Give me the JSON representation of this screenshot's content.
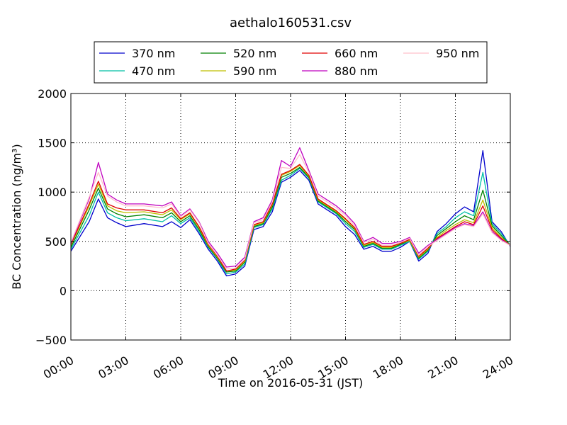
{
  "chart_data": {
    "type": "line",
    "title": "aethalo160531.csv",
    "xlabel": "Time on 2016-05-31 (JST)",
    "ylabel": "BC Concentration (ng/m³)",
    "xlim": [
      0,
      24
    ],
    "ylim": [
      -500,
      2000
    ],
    "xticks": [
      0,
      3,
      6,
      9,
      12,
      15,
      18,
      21,
      24
    ],
    "xtick_labels": [
      "00:00",
      "03:00",
      "06:00",
      "09:00",
      "12:00",
      "15:00",
      "18:00",
      "21:00",
      "24:00"
    ],
    "yticks": [
      -500,
      0,
      500,
      1000,
      1500,
      2000
    ],
    "ytick_labels": [
      "−500",
      "0",
      "500",
      "1000",
      "1500",
      "2000"
    ],
    "grid": true,
    "legend_placement": "top-center",
    "x": [
      0,
      1,
      1.5,
      2,
      2.5,
      3,
      4,
      5,
      5.5,
      6,
      6.5,
      7,
      7.5,
      8,
      8.5,
      9,
      9.5,
      10,
      10.5,
      11,
      11.5,
      12,
      12.5,
      13,
      13.5,
      14,
      14.5,
      15,
      15.5,
      16,
      16.5,
      17,
      17.5,
      18,
      18.5,
      19,
      19.5,
      20,
      20.5,
      21,
      21.5,
      22,
      22.5,
      23,
      23.5,
      24
    ],
    "series": [
      {
        "name": "370 nm",
        "color": "#0000cc",
        "values": [
          400,
          700,
          930,
          740,
          690,
          650,
          680,
          650,
          700,
          640,
          720,
          580,
          420,
          300,
          150,
          170,
          250,
          620,
          650,
          800,
          1100,
          1150,
          1220,
          1120,
          880,
          820,
          760,
          650,
          570,
          420,
          450,
          400,
          400,
          440,
          500,
          300,
          380,
          600,
          680,
          780,
          850,
          800,
          1420,
          700,
          600,
          450
        ]
      },
      {
        "name": "470 nm",
        "color": "#00bfa5",
        "values": [
          420,
          760,
          1000,
          790,
          740,
          710,
          730,
          700,
          760,
          680,
          740,
          600,
          440,
          320,
          170,
          190,
          270,
          640,
          670,
          830,
          1120,
          1170,
          1240,
          1140,
          900,
          840,
          780,
          680,
          600,
          440,
          470,
          420,
          420,
          460,
          500,
          320,
          400,
          580,
          650,
          740,
          800,
          760,
          1200,
          680,
          580,
          460
        ]
      },
      {
        "name": "520 nm",
        "color": "#008000",
        "values": [
          440,
          820,
          1040,
          830,
          780,
          750,
          770,
          740,
          790,
          700,
          760,
          620,
          450,
          330,
          190,
          200,
          290,
          650,
          680,
          850,
          1150,
          1190,
          1250,
          1150,
          910,
          850,
          790,
          700,
          620,
          450,
          480,
          430,
          430,
          470,
          510,
          330,
          410,
          560,
          630,
          700,
          760,
          720,
          1020,
          660,
          560,
          460
        ]
      },
      {
        "name": "590 nm",
        "color": "#bfbf00",
        "values": [
          460,
          860,
          1080,
          860,
          810,
          790,
          800,
          770,
          820,
          720,
          780,
          640,
          460,
          340,
          200,
          210,
          300,
          660,
          690,
          870,
          1170,
          1210,
          1270,
          1160,
          920,
          860,
          800,
          720,
          630,
          460,
          490,
          440,
          440,
          480,
          510,
          340,
          420,
          540,
          610,
          670,
          720,
          690,
          920,
          640,
          540,
          460
        ]
      },
      {
        "name": "660 nm",
        "color": "#e00000",
        "values": [
          470,
          880,
          1110,
          880,
          840,
          820,
          820,
          790,
          840,
          730,
          790,
          650,
          470,
          350,
          200,
          220,
          310,
          670,
          700,
          880,
          1180,
          1220,
          1280,
          1170,
          930,
          870,
          810,
          730,
          640,
          470,
          500,
          450,
          450,
          480,
          520,
          350,
          430,
          530,
          590,
          650,
          700,
          670,
          860,
          620,
          530,
          460
        ]
      },
      {
        "name": "880 nm",
        "color": "#bf00bf",
        "values": [
          480,
          930,
          1300,
          980,
          920,
          880,
          880,
          860,
          900,
          760,
          830,
          700,
          500,
          380,
          240,
          250,
          340,
          700,
          740,
          920,
          1320,
          1260,
          1450,
          1220,
          980,
          920,
          860,
          780,
          680,
          500,
          540,
          480,
          480,
          500,
          540,
          380,
          460,
          520,
          580,
          640,
          680,
          660,
          800,
          600,
          520,
          460
        ]
      },
      {
        "name": "950 nm",
        "color": "#ffc0cb",
        "values": [
          490,
          950,
          1200,
          960,
          900,
          860,
          860,
          840,
          880,
          750,
          820,
          690,
          480,
          360,
          220,
          230,
          320,
          690,
          720,
          900,
          1250,
          1240,
          1380,
          1200,
          960,
          900,
          840,
          760,
          660,
          490,
          520,
          460,
          460,
          490,
          530,
          360,
          450,
          510,
          570,
          630,
          670,
          650,
          780,
          590,
          510,
          460
        ]
      }
    ]
  }
}
